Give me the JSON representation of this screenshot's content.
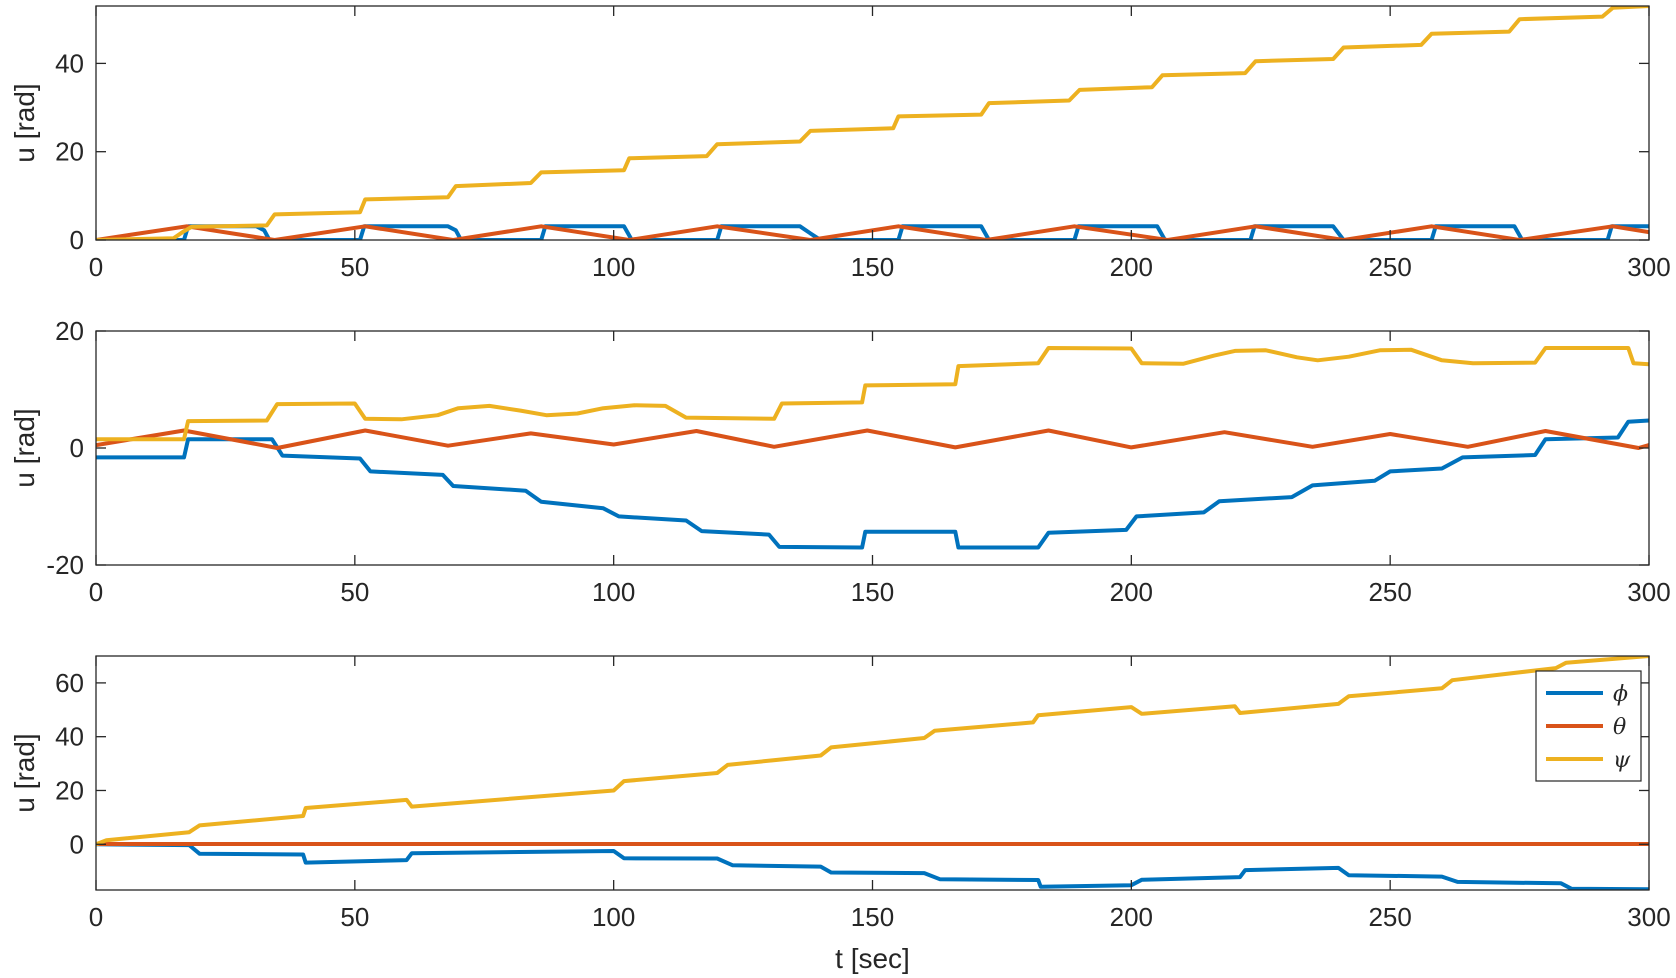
{
  "chart_data": [
    {
      "type": "line",
      "ylabel": "u [rad]",
      "xlabel": "",
      "xlim": [
        0,
        300
      ],
      "ylim": [
        0,
        53
      ],
      "xticks": [
        0,
        50,
        100,
        150,
        200,
        250,
        300
      ],
      "yticks": [
        0,
        20,
        40
      ],
      "grid": false,
      "legend": null,
      "series": [
        {
          "name": "ϕ",
          "color": "#0072BD",
          "width": 4,
          "points": [
            [
              0,
              0
            ],
            [
              17,
              0
            ],
            [
              17.8,
              3.1
            ],
            [
              31,
              3.1
            ],
            [
              32.5,
              2.2
            ],
            [
              33.5,
              0
            ],
            [
              51,
              0
            ],
            [
              51.8,
              3.1
            ],
            [
              68,
              3.1
            ],
            [
              69.5,
              2.2
            ],
            [
              70.5,
              0
            ],
            [
              86,
              0
            ],
            [
              86.8,
              3.1
            ],
            [
              102,
              3.1
            ],
            [
              103.5,
              0
            ],
            [
              120,
              0
            ],
            [
              120.8,
              3.1
            ],
            [
              136,
              3.1
            ],
            [
              138,
              1.5
            ],
            [
              140,
              0
            ],
            [
              155,
              0
            ],
            [
              155.8,
              3.1
            ],
            [
              171,
              3.1
            ],
            [
              172.5,
              0
            ],
            [
              189,
              0
            ],
            [
              189.8,
              3.1
            ],
            [
              205,
              3.1
            ],
            [
              206.5,
              0
            ],
            [
              223,
              0
            ],
            [
              223.8,
              3.1
            ],
            [
              239,
              3.1
            ],
            [
              241,
              0
            ],
            [
              258,
              0
            ],
            [
              258.8,
              3.1
            ],
            [
              274,
              3.1
            ],
            [
              275.5,
              0
            ],
            [
              292,
              0
            ],
            [
              292.8,
              3.1
            ],
            [
              300,
              3.1
            ]
          ]
        },
        {
          "name": "θ",
          "color": "#D95319",
          "width": 4,
          "points": [
            [
              0,
              0
            ],
            [
              17.5,
              3.1
            ],
            [
              34.5,
              0
            ],
            [
              52,
              3.1
            ],
            [
              69,
              0
            ],
            [
              86,
              3.1
            ],
            [
              103,
              0
            ],
            [
              120,
              3.1
            ],
            [
              138,
              0
            ],
            [
              155,
              3.1
            ],
            [
              172,
              0
            ],
            [
              189,
              3.1
            ],
            [
              207,
              0
            ],
            [
              224,
              3.1
            ],
            [
              241,
              0
            ],
            [
              258,
              3.1
            ],
            [
              275,
              0
            ],
            [
              293,
              3.1
            ],
            [
              300,
              1.8
            ]
          ]
        },
        {
          "name": "ψ",
          "color": "#EDB120",
          "width": 4,
          "points": [
            [
              0,
              0
            ],
            [
              15,
              0.4
            ],
            [
              17,
              2
            ],
            [
              18.5,
              3
            ],
            [
              33,
              3.3
            ],
            [
              34.5,
              5.8
            ],
            [
              51,
              6.3
            ],
            [
              52,
              9.2
            ],
            [
              68,
              9.7
            ],
            [
              69.5,
              12.2
            ],
            [
              84,
              12.9
            ],
            [
              86,
              15.3
            ],
            [
              102,
              15.8
            ],
            [
              103,
              18.5
            ],
            [
              118,
              19
            ],
            [
              120,
              21.7
            ],
            [
              136,
              22.3
            ],
            [
              138,
              24.7
            ],
            [
              154,
              25.3
            ],
            [
              155,
              28
            ],
            [
              171,
              28.4
            ],
            [
              172.5,
              31
            ],
            [
              188,
              31.6
            ],
            [
              190,
              34
            ],
            [
              204,
              34.6
            ],
            [
              206,
              37.3
            ],
            [
              222,
              37.8
            ],
            [
              224,
              40.5
            ],
            [
              239,
              41
            ],
            [
              241,
              43.6
            ],
            [
              256,
              44.2
            ],
            [
              258,
              46.7
            ],
            [
              273,
              47.2
            ],
            [
              275,
              50
            ],
            [
              291,
              50.6
            ],
            [
              293,
              52.6
            ],
            [
              300,
              53
            ]
          ]
        }
      ]
    },
    {
      "type": "line",
      "ylabel": "u [rad]",
      "xlabel": "",
      "xlim": [
        0,
        300
      ],
      "ylim": [
        -20,
        20
      ],
      "xticks": [
        0,
        50,
        100,
        150,
        200,
        250,
        300
      ],
      "yticks": [
        -20,
        0,
        20
      ],
      "grid": false,
      "legend": null,
      "series": [
        {
          "name": "ϕ",
          "color": "#0072BD",
          "width": 4,
          "points": [
            [
              0,
              -1.6
            ],
            [
              17,
              -1.6
            ],
            [
              17.8,
              1.5
            ],
            [
              34,
              1.5
            ],
            [
              36,
              -1.3
            ],
            [
              51,
              -1.8
            ],
            [
              53,
              -4
            ],
            [
              67,
              -4.6
            ],
            [
              69,
              -6.5
            ],
            [
              83,
              -7.3
            ],
            [
              86,
              -9.2
            ],
            [
              98,
              -10.3
            ],
            [
              101,
              -11.7
            ],
            [
              114,
              -12.4
            ],
            [
              117,
              -14.2
            ],
            [
              130,
              -14.8
            ],
            [
              132,
              -16.9
            ],
            [
              148,
              -17
            ],
            [
              148.6,
              -14.3
            ],
            [
              166,
              -14.3
            ],
            [
              166.6,
              -17
            ],
            [
              182,
              -17
            ],
            [
              184,
              -14.5
            ],
            [
              199,
              -14
            ],
            [
              201,
              -11.7
            ],
            [
              214,
              -11
            ],
            [
              217,
              -9.1
            ],
            [
              231,
              -8.4
            ],
            [
              235,
              -6.4
            ],
            [
              247,
              -5.6
            ],
            [
              250,
              -4
            ],
            [
              260,
              -3.5
            ],
            [
              264,
              -1.6
            ],
            [
              278,
              -1.2
            ],
            [
              280,
              1.5
            ],
            [
              294,
              1.8
            ],
            [
              296,
              4.5
            ],
            [
              300,
              4.7
            ]
          ]
        },
        {
          "name": "θ",
          "color": "#D95319",
          "width": 4,
          "points": [
            [
              0,
              0.5
            ],
            [
              17,
              3
            ],
            [
              35,
              0
            ],
            [
              52,
              3
            ],
            [
              68,
              0.4
            ],
            [
              84,
              2.5
            ],
            [
              100,
              0.6
            ],
            [
              116,
              2.9
            ],
            [
              131,
              0.2
            ],
            [
              149,
              3
            ],
            [
              166,
              0.1
            ],
            [
              184,
              3
            ],
            [
              200,
              0.1
            ],
            [
              218,
              2.7
            ],
            [
              235,
              0.2
            ],
            [
              250,
              2.4
            ],
            [
              265,
              0.2
            ],
            [
              280,
              2.9
            ],
            [
              298,
              0
            ],
            [
              300,
              0.5
            ]
          ]
        },
        {
          "name": "ψ",
          "color": "#EDB120",
          "width": 4,
          "points": [
            [
              0,
              1.5
            ],
            [
              17,
              1.5
            ],
            [
              17.8,
              4.6
            ],
            [
              33,
              4.7
            ],
            [
              35,
              7.5
            ],
            [
              50,
              7.6
            ],
            [
              52,
              5
            ],
            [
              59,
              4.9
            ],
            [
              66,
              5.6
            ],
            [
              70,
              6.8
            ],
            [
              76,
              7.2
            ],
            [
              82,
              6.4
            ],
            [
              87,
              5.6
            ],
            [
              93,
              5.9
            ],
            [
              98,
              6.8
            ],
            [
              104,
              7.3
            ],
            [
              110,
              7.2
            ],
            [
              114,
              5.2
            ],
            [
              131,
              5
            ],
            [
              132.5,
              7.6
            ],
            [
              148,
              7.8
            ],
            [
              148.6,
              10.7
            ],
            [
              166,
              10.9
            ],
            [
              166.6,
              14
            ],
            [
              182,
              14.5
            ],
            [
              184,
              17.1
            ],
            [
              200,
              17
            ],
            [
              202,
              14.5
            ],
            [
              210,
              14.4
            ],
            [
              216,
              15.8
            ],
            [
              220,
              16.6
            ],
            [
              226,
              16.7
            ],
            [
              232,
              15.5
            ],
            [
              236,
              15
            ],
            [
              242,
              15.6
            ],
            [
              248,
              16.7
            ],
            [
              254,
              16.8
            ],
            [
              260,
              15
            ],
            [
              266,
              14.5
            ],
            [
              278,
              14.6
            ],
            [
              280,
              17.1
            ],
            [
              296,
              17.1
            ],
            [
              297,
              14.5
            ],
            [
              300,
              14.3
            ]
          ]
        }
      ]
    },
    {
      "type": "line",
      "ylabel": "u [rad]",
      "xlabel": "t [sec]",
      "xlim": [
        0,
        300
      ],
      "ylim": [
        -17,
        70
      ],
      "xticks": [
        0,
        50,
        100,
        150,
        200,
        250,
        300
      ],
      "yticks": [
        0,
        20,
        40,
        60
      ],
      "grid": false,
      "legend": {
        "placement": "top-right",
        "entries": [
          "ϕ",
          "θ",
          "ψ"
        ]
      },
      "series": [
        {
          "name": "ϕ",
          "color": "#0072BD",
          "width": 4,
          "points": [
            [
              0,
              0
            ],
            [
              18,
              -0.3
            ],
            [
              20,
              -3.5
            ],
            [
              40,
              -3.8
            ],
            [
              40.5,
              -6.8
            ],
            [
              60,
              -5.9
            ],
            [
              61,
              -3.3
            ],
            [
              100,
              -2.5
            ],
            [
              102,
              -5.2
            ],
            [
              120,
              -5.3
            ],
            [
              123,
              -7.8
            ],
            [
              140,
              -8.3
            ],
            [
              142,
              -10.5
            ],
            [
              160,
              -10.7
            ],
            [
              163,
              -13
            ],
            [
              182,
              -13.3
            ],
            [
              182.5,
              -15.8
            ],
            [
              200,
              -15.2
            ],
            [
              202,
              -13.2
            ],
            [
              221,
              -12.2
            ],
            [
              222,
              -9.6
            ],
            [
              240,
              -8.8
            ],
            [
              242,
              -11.5
            ],
            [
              260,
              -12
            ],
            [
              263,
              -14
            ],
            [
              283,
              -14.5
            ],
            [
              285,
              -16.5
            ],
            [
              300,
              -16.7
            ]
          ]
        },
        {
          "name": "θ",
          "color": "#D95319",
          "width": 4,
          "points": [
            [
              0,
              0.1
            ],
            [
              300,
              0.1
            ]
          ]
        },
        {
          "name": "ψ",
          "color": "#EDB120",
          "width": 4,
          "points": [
            [
              0,
              0
            ],
            [
              2,
              1.5
            ],
            [
              18,
              4.5
            ],
            [
              20,
              7
            ],
            [
              40,
              10.5
            ],
            [
              40.5,
              13.5
            ],
            [
              60,
              16.5
            ],
            [
              61,
              14
            ],
            [
              100,
              20
            ],
            [
              102,
              23.5
            ],
            [
              120,
              26.5
            ],
            [
              122,
              29.5
            ],
            [
              140,
              33
            ],
            [
              142,
              36
            ],
            [
              160,
              39.5
            ],
            [
              162,
              42.2
            ],
            [
              181,
              45.3
            ],
            [
              182,
              48
            ],
            [
              200,
              51
            ],
            [
              202,
              48.5
            ],
            [
              220,
              51.3
            ],
            [
              221,
              48.8
            ],
            [
              240,
              52.2
            ],
            [
              242,
              55
            ],
            [
              260,
              58
            ],
            [
              262,
              61
            ],
            [
              282,
              65.5
            ],
            [
              284,
              67.5
            ],
            [
              300,
              70
            ]
          ]
        }
      ]
    }
  ]
}
